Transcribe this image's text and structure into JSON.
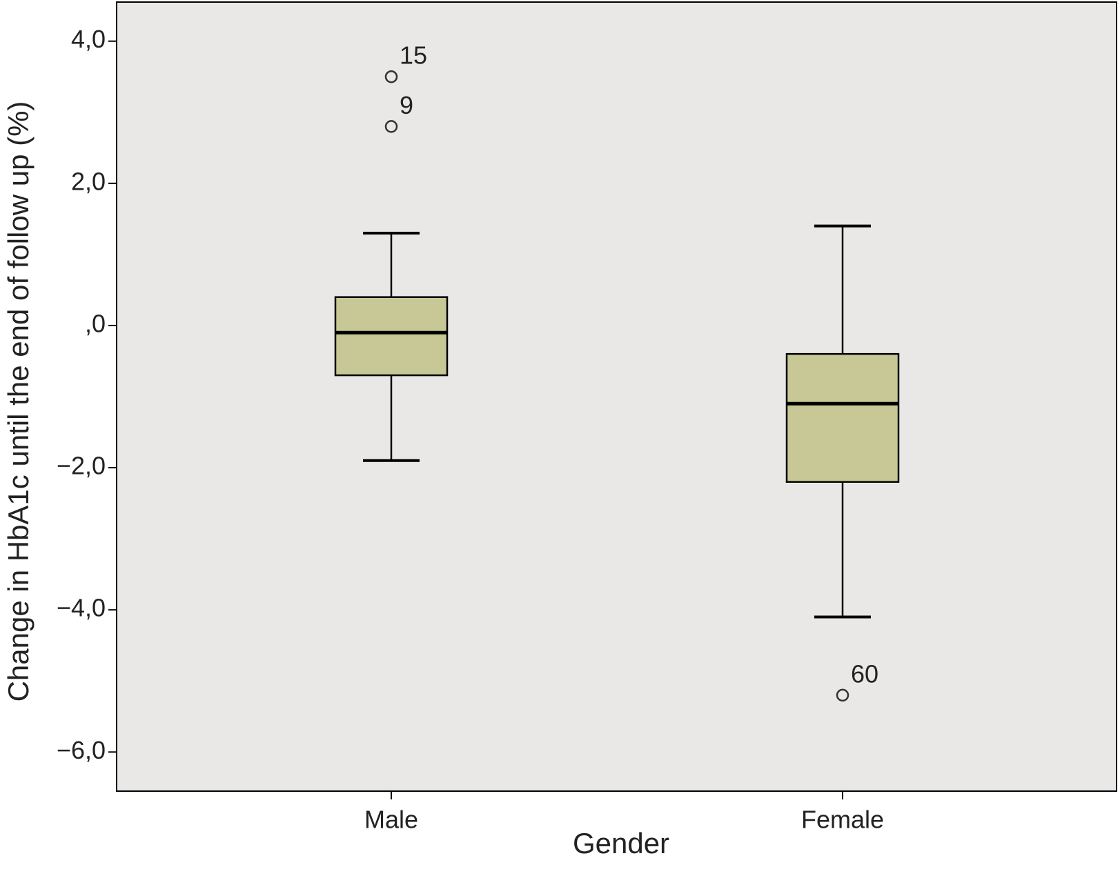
{
  "chart_data": {
    "type": "box",
    "x_label": "Gender",
    "y_label": "Change in HbA1c until the end of follow up (%)",
    "categories": [
      "Male",
      "Female"
    ],
    "color": "#c8c896",
    "boxes": [
      {
        "min": -1.9,
        "q1": -0.7,
        "median": -0.1,
        "q3": 0.4,
        "max": 1.3
      },
      {
        "min": -4.1,
        "q1": -2.2,
        "median": -1.1,
        "q3": -0.4,
        "max": 1.4
      }
    ],
    "outliers": [
      [
        {
          "value": 3.5,
          "case": "15"
        },
        {
          "value": 2.8,
          "case": "9"
        }
      ],
      [
        {
          "value": -5.2,
          "case": "60"
        }
      ]
    ],
    "ylim": [
      -6.55,
      4.55
    ],
    "yticks": [
      {
        "value": 4,
        "label": "4,0"
      },
      {
        "value": 2,
        "label": "2,0"
      },
      {
        "value": 0,
        "label": ",0"
      },
      {
        "value": -2,
        "label": "−2,0"
      },
      {
        "value": -4,
        "label": "−4,0"
      },
      {
        "value": -6,
        "label": "−6,0"
      }
    ]
  }
}
